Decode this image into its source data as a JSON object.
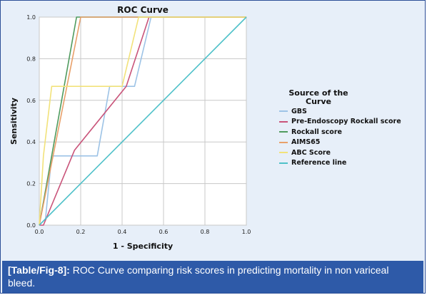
{
  "chart_data": {
    "type": "line",
    "title": "ROC Curve",
    "xlabel": "1 - Specificity",
    "ylabel": "Sensitivity",
    "xlim": [
      0,
      1
    ],
    "ylim": [
      0,
      1
    ],
    "xticks": [
      "0.0",
      "0.2",
      "0.4",
      "0.6",
      "0.8",
      "1.0"
    ],
    "yticks": [
      "0.0",
      "0.2",
      "0.4",
      "0.6",
      "0.8",
      "1.0"
    ],
    "grid": true,
    "legend_title": "Source of the Curve",
    "legend_position": "right",
    "series": [
      {
        "name": "GBS",
        "color": "#9dc3e6",
        "x": [
          0,
          0.03,
          0.06,
          0.28,
          0.34,
          0.46,
          0.54,
          1.0
        ],
        "y": [
          0,
          0.03,
          0.333,
          0.333,
          0.667,
          0.667,
          1.0,
          1.0
        ]
      },
      {
        "name": "Pre-Endoscopy Rockall score",
        "color": "#c9547a",
        "x": [
          0,
          0.02,
          0.17,
          0.42,
          0.53,
          1.0
        ],
        "y": [
          0,
          0.0,
          0.36,
          0.667,
          1.0,
          1.0
        ]
      },
      {
        "name": "Rockall score",
        "color": "#4f9b5e",
        "x": [
          0,
          0.18,
          1.0
        ],
        "y": [
          0,
          1.0,
          1.0
        ]
      },
      {
        "name": "AIMS65",
        "color": "#e8a06a",
        "x": [
          0,
          0.2,
          1.0
        ],
        "y": [
          0,
          1.0,
          1.0
        ]
      },
      {
        "name": "ABC Score",
        "color": "#f2e27a",
        "x": [
          0,
          0.02,
          0.06,
          0.4,
          0.48,
          1.0
        ],
        "y": [
          0,
          0.333,
          0.667,
          0.667,
          1.0,
          1.0
        ]
      },
      {
        "name": "Reference line",
        "color": "#4fc1c9",
        "x": [
          0,
          1.0
        ],
        "y": [
          0,
          1.0
        ]
      }
    ]
  },
  "caption": {
    "label": "[Table/Fig-8]:",
    "text": " ROC Curve comparing risk scores in predicting mortality in non variceal bleed."
  }
}
